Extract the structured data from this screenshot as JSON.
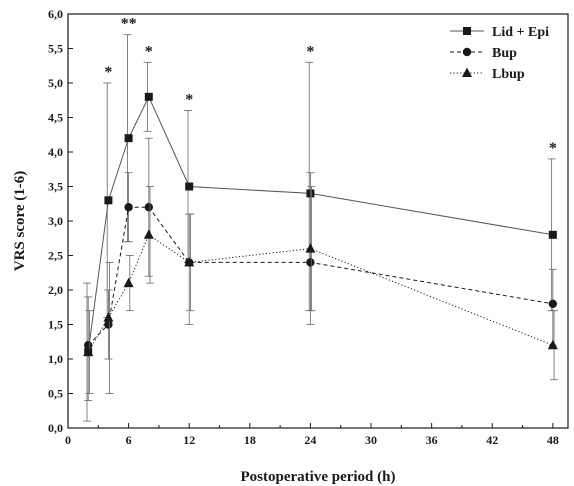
{
  "chart_data": {
    "type": "line",
    "xlabel": "Postoperative period (h)",
    "ylabel": "VRS score (1-6)",
    "xlim": [
      0,
      49.5
    ],
    "ylim": [
      0,
      6
    ],
    "x_ticks": [
      0,
      6,
      12,
      18,
      24,
      30,
      36,
      42,
      48
    ],
    "x_tick_labels": [
      "0",
      "6",
      "12",
      "18",
      "24",
      "30",
      "36",
      "42",
      "48"
    ],
    "y_ticks": [
      0,
      0.5,
      1,
      1.5,
      2,
      2.5,
      3,
      3.5,
      4,
      4.5,
      5,
      5.5,
      6
    ],
    "y_tick_labels": [
      "0,0",
      "0,5",
      "1,0",
      "1,5",
      "2,0",
      "2,5",
      "3,0",
      "3,5",
      "4,0",
      "4,5",
      "5,0",
      "5,5",
      "6,0"
    ],
    "grid": false,
    "legend_position": "top-right",
    "series": [
      {
        "name": "Lid + Epi",
        "marker": "square",
        "line_style": "solid",
        "color": "#555555",
        "x": [
          2,
          4,
          6,
          8,
          12,
          24,
          48
        ],
        "y": [
          1.1,
          3.3,
          4.2,
          4.8,
          3.5,
          3.4,
          2.8
        ],
        "err_low": [
          0.1,
          1.6,
          2.7,
          4.3,
          2.4,
          1.7,
          1.7
        ],
        "err_high": [
          2.1,
          5.0,
          5.7,
          5.3,
          4.6,
          5.3,
          3.9
        ]
      },
      {
        "name": "Bup",
        "marker": "circle",
        "line_style": "dashed",
        "color": "#1a1a1a",
        "x": [
          2,
          4,
          6,
          8,
          12,
          24,
          48
        ],
        "y": [
          1.2,
          1.5,
          3.2,
          3.2,
          2.4,
          2.4,
          1.8
        ],
        "err_low": [
          0.4,
          1.0,
          2.7,
          2.2,
          1.5,
          1.5,
          1.2
        ],
        "err_high": [
          1.9,
          2.0,
          3.7,
          4.2,
          3.1,
          3.7,
          2.3
        ]
      },
      {
        "name": "Lbup",
        "marker": "triangle",
        "line_style": "dotted",
        "color": "#1a1a1a",
        "x": [
          2,
          4,
          6,
          8,
          12,
          24,
          48
        ],
        "y": [
          1.1,
          1.6,
          2.1,
          2.8,
          2.4,
          2.6,
          1.2
        ],
        "err_low": [
          0.5,
          0.5,
          1.7,
          2.1,
          1.7,
          1.7,
          0.7
        ],
        "err_high": [
          1.7,
          2.4,
          2.5,
          3.5,
          3.1,
          3.5,
          1.7
        ]
      }
    ],
    "annotations": [
      {
        "x": 4,
        "y": 5.0,
        "text": "*"
      },
      {
        "x": 6,
        "y": 5.7,
        "text": "**"
      },
      {
        "x": 8,
        "y": 5.3,
        "text": "*"
      },
      {
        "x": 12,
        "y": 4.6,
        "text": "*"
      },
      {
        "x": 24,
        "y": 5.3,
        "text": "*"
      },
      {
        "x": 48,
        "y": 3.9,
        "text": "*"
      }
    ]
  }
}
